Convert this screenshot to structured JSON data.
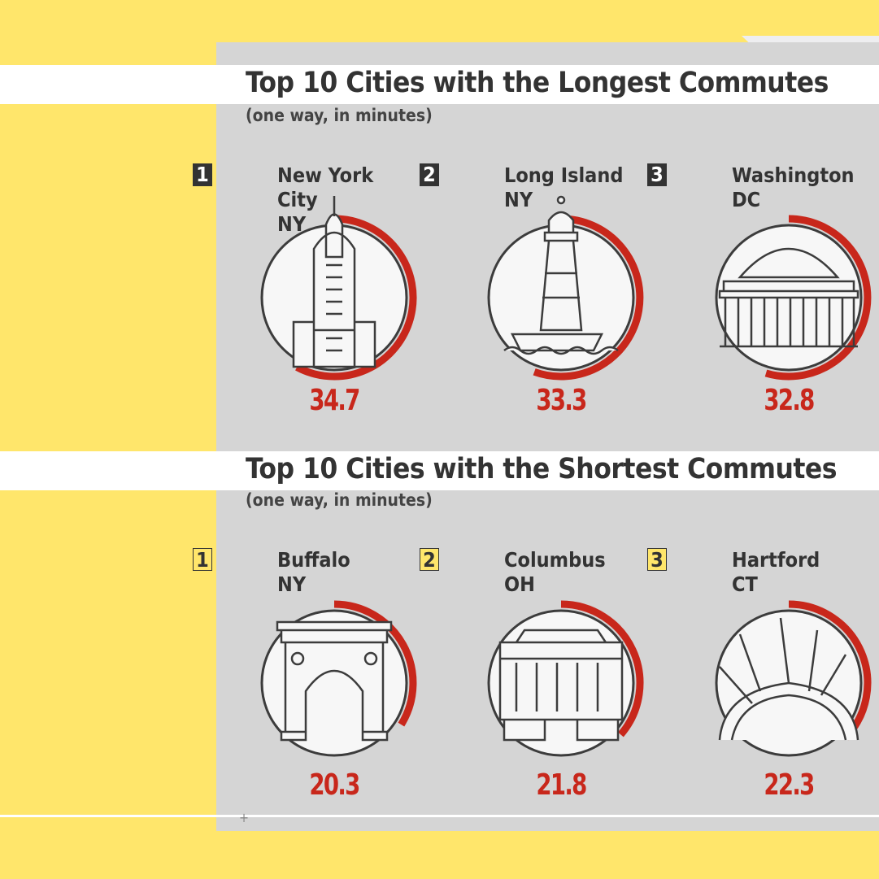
{
  "sections": [
    {
      "title": "Top 10 Cities with the Longest Commutes",
      "subtitle": "(one way, in minutes)",
      "rank_style": "dark",
      "items": [
        {
          "rank": "1",
          "city": "New York City",
          "state": "NY",
          "value": "34.7",
          "icon": "chrysler-building-icon"
        },
        {
          "rank": "2",
          "city": "Long Island",
          "state": "NY",
          "value": "33.3",
          "icon": "lighthouse-icon"
        },
        {
          "rank": "3",
          "city": "Washington",
          "state": "DC",
          "value": "32.8",
          "icon": "jefferson-memorial-icon"
        }
      ]
    },
    {
      "title": "Top 10 Cities with the Shortest Commutes",
      "subtitle": "(one way, in minutes)",
      "rank_style": "yellow",
      "items": [
        {
          "rank": "1",
          "city": "Buffalo",
          "state": "NY",
          "value": "20.3",
          "icon": "arch-monument-icon"
        },
        {
          "rank": "2",
          "city": "Columbus",
          "state": "OH",
          "value": "21.8",
          "icon": "statehouse-icon"
        },
        {
          "rank": "3",
          "city": "Hartford",
          "state": "CT",
          "value": "22.3",
          "icon": "crown-sculpture-icon"
        }
      ]
    }
  ],
  "colors": {
    "background": "#FFE66B",
    "panel": "#D5D5D5",
    "accent": "#C8271B",
    "ink": "#333333"
  }
}
